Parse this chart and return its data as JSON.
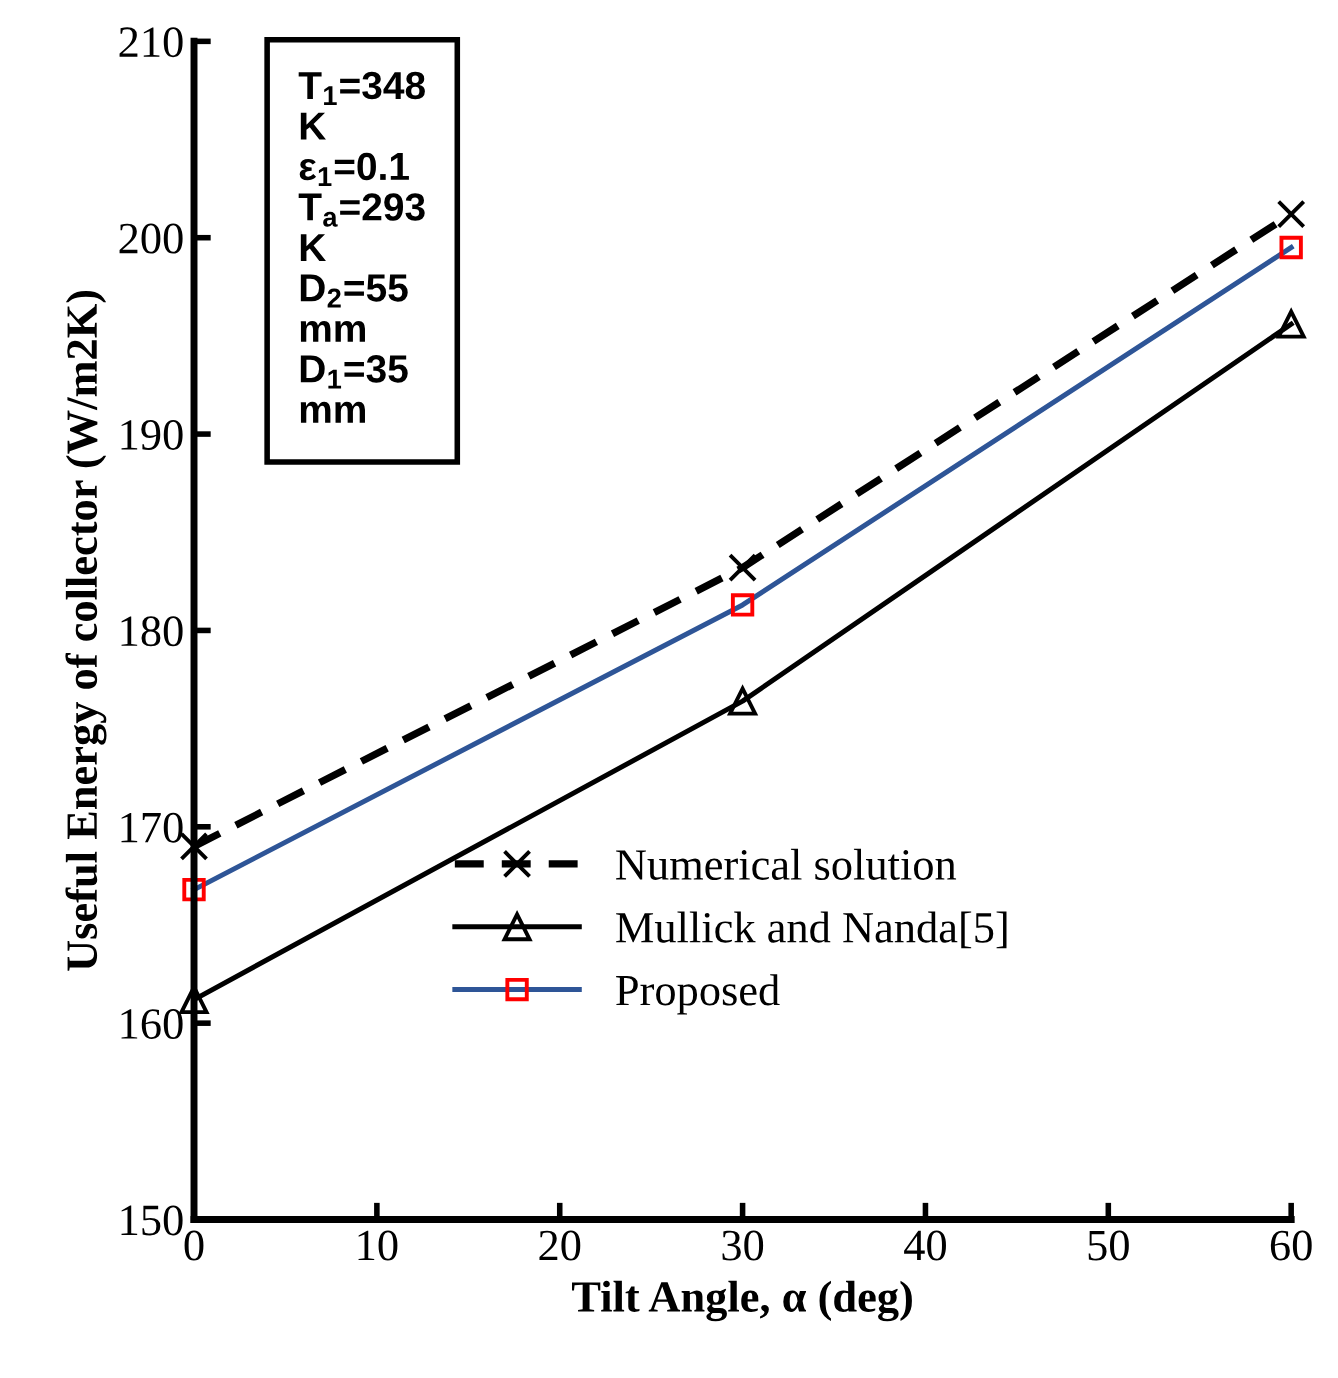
{
  "chart_data": {
    "type": "line",
    "xlabel": "Tilt Angle, α (deg)",
    "ylabel": "Useful Energy of collector (W/m2K)",
    "x": [
      0,
      30,
      60
    ],
    "series": [
      {
        "name": "Numerical solution",
        "color": "#000000",
        "values": [
          169.0,
          183.2,
          201.2
        ],
        "marker": "cross",
        "line_style": "dashed"
      },
      {
        "name": "Mullick and Nanda[5]",
        "color": "#000000",
        "values": [
          161.2,
          176.4,
          195.6
        ],
        "marker": "triangle",
        "line_style": "solid"
      },
      {
        "name": "Proposed",
        "color": "#2e5597",
        "values": [
          166.8,
          181.3,
          199.5
        ],
        "marker": "square",
        "line_style": "solid"
      }
    ],
    "annotations": [
      "T$_{1}$=348\nK\nε$_{1}$=0.1\nT$_{a}$=293\nK\nD$_{2}$=55\nmm\nD$_{1}$=35\nmm"
    ],
    "xlim": [
      0,
      60
    ],
    "xticks": [
      0,
      10,
      20,
      30,
      40,
      50,
      60
    ],
    "ylim": [
      150,
      210
    ],
    "yticks": [
      150,
      160,
      170,
      180,
      190,
      200,
      210
    ],
    "grid": false,
    "legend": "bottom right"
  }
}
